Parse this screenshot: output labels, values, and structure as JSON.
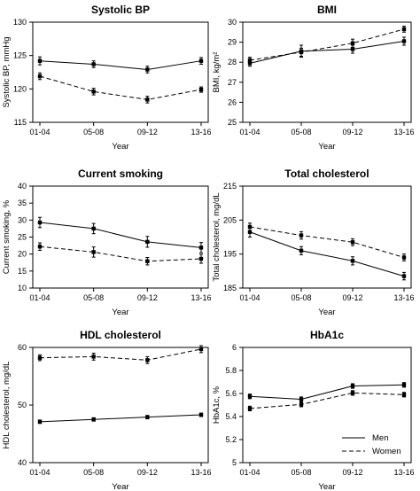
{
  "chart_data": [
    {
      "type": "line",
      "title": "Systolic BP",
      "xlabel": "Year",
      "ylabel": "Systolic BP, mmHg",
      "categories": [
        "01-04",
        "05-08",
        "09-12",
        "13-16"
      ],
      "ylim": [
        115,
        130
      ],
      "yticks": [
        "115",
        "120",
        "125",
        "130"
      ],
      "grid": false,
      "series": [
        {
          "name": "Men",
          "style": "solid",
          "values": [
            124.2,
            123.7,
            122.9,
            124.2
          ],
          "err": [
            0.6,
            0.5,
            0.5,
            0.5
          ]
        },
        {
          "name": "Women",
          "style": "dashed",
          "values": [
            121.9,
            119.6,
            118.4,
            119.9
          ],
          "err": [
            0.5,
            0.5,
            0.5,
            0.4
          ]
        }
      ]
    },
    {
      "type": "line",
      "title": "BMI",
      "xlabel": "Year",
      "ylabel": "BMI, kg/m²",
      "categories": [
        "01-04",
        "05-08",
        "09-12",
        "13-16"
      ],
      "ylim": [
        25,
        30
      ],
      "yticks": [
        "25",
        "26",
        "27",
        "28",
        "29",
        "30"
      ],
      "grid": false,
      "series": [
        {
          "name": "Men",
          "style": "solid",
          "values": [
            27.95,
            28.55,
            28.65,
            29.05
          ],
          "err": [
            0.15,
            0.3,
            0.2,
            0.2
          ]
        },
        {
          "name": "Women",
          "style": "dashed",
          "values": [
            28.1,
            28.5,
            28.95,
            29.65
          ],
          "err": [
            0.15,
            0.2,
            0.2,
            0.15
          ]
        }
      ]
    },
    {
      "type": "line",
      "title": "Current smoking",
      "xlabel": "Year",
      "ylabel": "Current smoking, %",
      "categories": [
        "01-04",
        "05-08",
        "09-12",
        "13-16"
      ],
      "ylim": [
        10,
        40
      ],
      "yticks": [
        "10",
        "15",
        "20",
        "25",
        "30",
        "35",
        "40"
      ],
      "grid": false,
      "series": [
        {
          "name": "Men",
          "style": "solid",
          "values": [
            29.3,
            27.5,
            23.6,
            21.9
          ],
          "err": [
            1.5,
            1.5,
            1.6,
            1.5
          ]
        },
        {
          "name": "Women",
          "style": "dashed",
          "values": [
            22.2,
            20.6,
            17.9,
            18.6
          ],
          "err": [
            1.1,
            1.5,
            1.1,
            1.3
          ]
        }
      ]
    },
    {
      "type": "line",
      "title": "Total cholesterol",
      "xlabel": "Year",
      "ylabel": "Total cholesterol, mg/dL",
      "categories": [
        "01-04",
        "05-08",
        "09-12",
        "13-16"
      ],
      "ylim": [
        185,
        215
      ],
      "yticks": [
        "185",
        "195",
        "205",
        "215"
      ],
      "grid": false,
      "series": [
        {
          "name": "Men",
          "style": "solid",
          "values": [
            201.5,
            196.0,
            193.0,
            188.5
          ],
          "err": [
            1.5,
            1.2,
            1.2,
            1.1
          ]
        },
        {
          "name": "Women",
          "style": "dashed",
          "values": [
            203.0,
            200.5,
            198.5,
            194.0
          ],
          "err": [
            1.1,
            1.1,
            1.0,
            1.0
          ]
        }
      ]
    },
    {
      "type": "line",
      "title": "HDL cholesterol",
      "xlabel": "Year",
      "ylabel": "HDL cholesterol, mg/dL",
      "categories": [
        "01-04",
        "05-08",
        "09-12",
        "13-16"
      ],
      "ylim": [
        40,
        60
      ],
      "yticks": [
        "40",
        "50",
        "60"
      ],
      "grid": false,
      "series": [
        {
          "name": "Men",
          "style": "solid",
          "values": [
            47.1,
            47.5,
            47.9,
            48.3
          ],
          "err": [
            0.3,
            0.3,
            0.3,
            0.3
          ]
        },
        {
          "name": "Women",
          "style": "dashed",
          "values": [
            58.2,
            58.4,
            57.8,
            59.7
          ],
          "err": [
            0.5,
            0.6,
            0.6,
            0.6
          ]
        }
      ]
    },
    {
      "type": "line",
      "title": "HbA1c",
      "xlabel": "Year",
      "ylabel": "HbA1c, %",
      "categories": [
        "01-04",
        "05-08",
        "09-12",
        "13-16"
      ],
      "ylim": [
        5,
        6
      ],
      "yticks": [
        "5",
        "5.2",
        "5.4",
        "5.6",
        "5.8",
        "6"
      ],
      "grid": false,
      "legend": {
        "placement": "bottom-right",
        "entries": [
          {
            "label": "Men",
            "style": "solid"
          },
          {
            "label": "Women",
            "style": "dashed"
          }
        ]
      },
      "series": [
        {
          "name": "Men",
          "style": "solid",
          "values": [
            5.575,
            5.55,
            5.665,
            5.675
          ],
          "err": [
            0.02,
            0.02,
            0.02,
            0.02
          ]
        },
        {
          "name": "Women",
          "style": "dashed",
          "values": [
            5.47,
            5.505,
            5.605,
            5.59
          ],
          "err": [
            0.02,
            0.02,
            0.02,
            0.02
          ]
        }
      ]
    }
  ]
}
